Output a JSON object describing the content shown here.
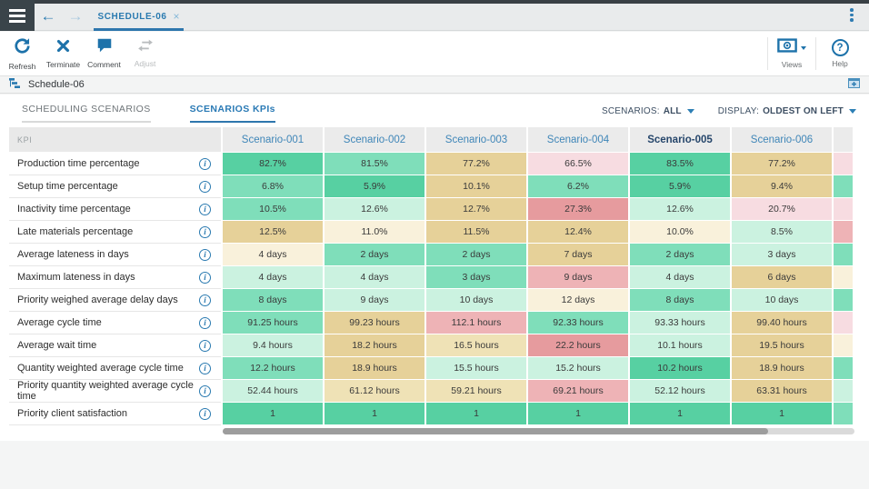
{
  "topbar": {
    "tab_label": "SCHEDULE-06",
    "close_label": "×",
    "back_arrow": "←",
    "forward_arrow": "→"
  },
  "toolbar": {
    "buttons": [
      {
        "id": "refresh",
        "label": "Refresh",
        "icon": "refresh-icon",
        "enabled": true
      },
      {
        "id": "terminate",
        "label": "Terminate",
        "icon": "terminate-icon",
        "enabled": true
      },
      {
        "id": "comment",
        "label": "Comment",
        "icon": "comment-icon",
        "enabled": true
      },
      {
        "id": "adjust",
        "label": "Adjust",
        "icon": "adjust-icon",
        "enabled": false
      }
    ],
    "views_label": "Views",
    "help_label": "Help",
    "help_glyph": "?"
  },
  "schedule_bar": {
    "title": "Schedule-06"
  },
  "view_tabs": [
    {
      "id": "scheduling-scenarios",
      "label": "SCHEDULING SCENARIOS",
      "active": false
    },
    {
      "id": "scenarios-kpis",
      "label": "SCENARIOS KPIs",
      "active": true
    }
  ],
  "filters": {
    "scenarios_label": "SCENARIOS:",
    "scenarios_value": "ALL",
    "display_label": "DISPLAY:",
    "display_value": "OLDEST ON LEFT"
  },
  "table": {
    "kpi_header": "KPI",
    "columns": [
      {
        "label": "Scenario-001",
        "bold": false
      },
      {
        "label": "Scenario-002",
        "bold": false
      },
      {
        "label": "Scenario-003",
        "bold": false
      },
      {
        "label": "Scenario-004",
        "bold": false
      },
      {
        "label": "Scenario-005",
        "bold": true
      },
      {
        "label": "Scenario-006",
        "bold": false
      }
    ],
    "rows": [
      {
        "label": "Production time percentage",
        "cells": [
          {
            "text": "82.7%",
            "color": "green_strong"
          },
          {
            "text": "81.5%",
            "color": "green_medium"
          },
          {
            "text": "77.2%",
            "color": "tan"
          },
          {
            "text": "66.5%",
            "color": "pink_light"
          },
          {
            "text": "83.5%",
            "color": "green_strong"
          },
          {
            "text": "77.2%",
            "color": "tan"
          }
        ],
        "overflow_color": "pink_light"
      },
      {
        "label": "Setup time percentage",
        "cells": [
          {
            "text": "6.8%",
            "color": "green_medium"
          },
          {
            "text": "5.9%",
            "color": "green_strong"
          },
          {
            "text": "10.1%",
            "color": "tan"
          },
          {
            "text": "6.2%",
            "color": "green_medium"
          },
          {
            "text": "5.9%",
            "color": "green_strong"
          },
          {
            "text": "9.4%",
            "color": "tan"
          }
        ],
        "overflow_color": "green_medium"
      },
      {
        "label": "Inactivity time percentage",
        "cells": [
          {
            "text": "10.5%",
            "color": "green_medium"
          },
          {
            "text": "12.6%",
            "color": "green_light"
          },
          {
            "text": "12.7%",
            "color": "tan"
          },
          {
            "text": "27.3%",
            "color": "pink_strong"
          },
          {
            "text": "12.6%",
            "color": "green_light"
          },
          {
            "text": "20.7%",
            "color": "pink_light"
          }
        ],
        "overflow_color": "pink_light"
      },
      {
        "label": "Late materials percentage",
        "cells": [
          {
            "text": "12.5%",
            "color": "tan"
          },
          {
            "text": "11.0%",
            "color": "cream"
          },
          {
            "text": "11.5%",
            "color": "tan"
          },
          {
            "text": "12.4%",
            "color": "tan"
          },
          {
            "text": "10.0%",
            "color": "cream"
          },
          {
            "text": "8.5%",
            "color": "green_light"
          }
        ],
        "overflow_color": "pink_medium"
      },
      {
        "label": "Average lateness in days",
        "cells": [
          {
            "text": "4 days",
            "color": "cream"
          },
          {
            "text": "2 days",
            "color": "green_medium"
          },
          {
            "text": "2 days",
            "color": "green_medium"
          },
          {
            "text": "7 days",
            "color": "tan"
          },
          {
            "text": "2 days",
            "color": "green_medium"
          },
          {
            "text": "3 days",
            "color": "green_light"
          }
        ],
        "overflow_color": "green_medium"
      },
      {
        "label": "Maximum lateness in days",
        "cells": [
          {
            "text": "4 days",
            "color": "green_light"
          },
          {
            "text": "4 days",
            "color": "green_light"
          },
          {
            "text": "3 days",
            "color": "green_medium"
          },
          {
            "text": "9 days",
            "color": "pink_medium"
          },
          {
            "text": "4 days",
            "color": "green_light"
          },
          {
            "text": "6 days",
            "color": "tan"
          }
        ],
        "overflow_color": "cream"
      },
      {
        "label": "Priority weighed average delay days",
        "cells": [
          {
            "text": "8 days",
            "color": "green_medium"
          },
          {
            "text": "9 days",
            "color": "green_light"
          },
          {
            "text": "10 days",
            "color": "green_light"
          },
          {
            "text": "12 days",
            "color": "cream"
          },
          {
            "text": "8 days",
            "color": "green_medium"
          },
          {
            "text": "10 days",
            "color": "green_light"
          }
        ],
        "overflow_color": "green_medium"
      },
      {
        "label": "Average cycle time",
        "cells": [
          {
            "text": "91.25 hours",
            "color": "green_medium"
          },
          {
            "text": "99.23 hours",
            "color": "tan"
          },
          {
            "text": "112.1 hours",
            "color": "pink_medium"
          },
          {
            "text": "92.33 hours",
            "color": "green_medium"
          },
          {
            "text": "93.33 hours",
            "color": "green_light"
          },
          {
            "text": "99.40 hours",
            "color": "tan"
          }
        ],
        "overflow_color": "pink_light"
      },
      {
        "label": "Average wait time",
        "cells": [
          {
            "text": "9.4 hours",
            "color": "green_light"
          },
          {
            "text": "18.2 hours",
            "color": "tan"
          },
          {
            "text": "16.5 hours",
            "color": "tan_light"
          },
          {
            "text": "22.2 hours",
            "color": "pink_strong"
          },
          {
            "text": "10.1 hours",
            "color": "green_light"
          },
          {
            "text": "19.5 hours",
            "color": "tan"
          }
        ],
        "overflow_color": "cream"
      },
      {
        "label": "Quantity weighted average cycle time",
        "cells": [
          {
            "text": "12.2 hours",
            "color": "green_medium"
          },
          {
            "text": "18.9 hours",
            "color": "tan"
          },
          {
            "text": "15.5 hours",
            "color": "green_light"
          },
          {
            "text": "15.2 hours",
            "color": "green_light"
          },
          {
            "text": "10.2 hours",
            "color": "green_strong"
          },
          {
            "text": "18.9 hours",
            "color": "tan"
          }
        ],
        "overflow_color": "green_medium"
      },
      {
        "label": "Priority quantity weighted average cycle time",
        "cells": [
          {
            "text": "52.44 hours",
            "color": "green_light"
          },
          {
            "text": "61.12 hours",
            "color": "tan_light"
          },
          {
            "text": "59.21 hours",
            "color": "tan_light"
          },
          {
            "text": "69.21 hours",
            "color": "pink_medium"
          },
          {
            "text": "52.12 hours",
            "color": "green_light"
          },
          {
            "text": "63.31 hours",
            "color": "tan"
          }
        ],
        "overflow_color": "green_light"
      },
      {
        "label": "Priority client satisfaction",
        "cells": [
          {
            "text": "1",
            "color": "green_strong"
          },
          {
            "text": "1",
            "color": "green_strong"
          },
          {
            "text": "1",
            "color": "green_strong"
          },
          {
            "text": "1",
            "color": "green_strong"
          },
          {
            "text": "1",
            "color": "green_strong"
          },
          {
            "text": "1",
            "color": "green_strong"
          }
        ],
        "overflow_color": "green_medium"
      }
    ]
  },
  "colors": {
    "green_strong": "#57d0a2",
    "green_medium": "#7fdeba",
    "green_light": "#cbf2e0",
    "cream": "#f9f1db",
    "tan_light": "#efe2b6",
    "tan": "#e6d199",
    "pink_light": "#f7dce1",
    "pink_medium": "#eeb3b6",
    "pink_strong": "#e69b9e",
    "accent_blue": "#2a7ab0"
  }
}
